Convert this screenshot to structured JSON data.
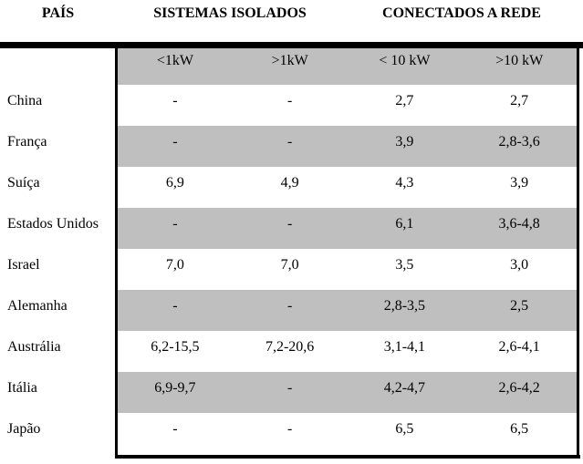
{
  "table": {
    "header": {
      "pais": "PAÍS",
      "group_isolated": "SISTEMAS ISOLADOS",
      "group_grid": "CONECTADOS A REDE"
    },
    "subheader": [
      "<1kW",
      ">1kW",
      "< 10 kW",
      ">10 kW"
    ],
    "rows": [
      {
        "country": "China",
        "values": [
          "-",
          "-",
          "2,7",
          "2,7"
        ],
        "shaded": false
      },
      {
        "country": "França",
        "values": [
          "-",
          "-",
          "3,9",
          "2,8-3,6"
        ],
        "shaded": true
      },
      {
        "country": "Suíça",
        "values": [
          "6,9",
          "4,9",
          "4,3",
          "3,9"
        ],
        "shaded": false
      },
      {
        "country": "Estados Unidos",
        "values": [
          "-",
          "-",
          "6,1",
          "3,6-4,8"
        ],
        "shaded": true
      },
      {
        "country": "Israel",
        "values": [
          "7,0",
          "7,0",
          "3,5",
          "3,0"
        ],
        "shaded": false
      },
      {
        "country": "Alemanha",
        "values": [
          "-",
          "-",
          "2,8-3,5",
          "2,5"
        ],
        "shaded": true
      },
      {
        "country": "Austrália",
        "values": [
          "6,2-15,5",
          "7,2-20,6",
          "3,1-4,1",
          "2,6-4,1"
        ],
        "shaded": false
      },
      {
        "country": "Itália",
        "values": [
          "6,9-9,7",
          "-",
          "4,2-4,7",
          "2,6-4,2"
        ],
        "shaded": true
      },
      {
        "country": "Japão",
        "values": [
          "-",
          "-",
          "6,5",
          "6,5"
        ],
        "shaded": false
      }
    ],
    "colors": {
      "shaded_row": "#bfbfbf",
      "border": "#000000",
      "text": "#000000",
      "background": "#ffffff"
    }
  }
}
